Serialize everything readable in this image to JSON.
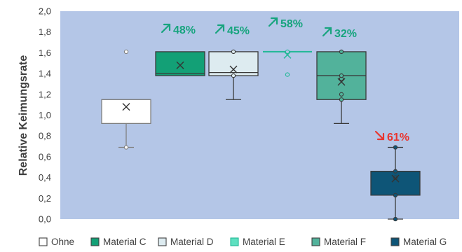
{
  "chart_data": {
    "type": "boxplot",
    "ylabel": "Relative Keimungsrate",
    "ylim": [
      0,
      2
    ],
    "ytick_step": 0.2,
    "yticks": [
      "0,0",
      "0,2",
      "0,4",
      "0,6",
      "0,8",
      "1,0",
      "1,2",
      "1,4",
      "1,6",
      "1,8",
      "2,0"
    ],
    "plot_background": "#b4c6e7",
    "grid": false,
    "legend_position": "bottom",
    "series": [
      {
        "name": "Ohne",
        "fill": "#ffffff",
        "edge": "#7f7f7f",
        "dot_fill": "#ffffff",
        "q1": 0.92,
        "median": 1.15,
        "q3": 1.15,
        "whisker_low": 0.69,
        "whisker_high": 1.15,
        "mean": 1.08,
        "points": [
          0.69,
          1.61
        ],
        "change": "",
        "change_dir": "",
        "change_color": ""
      },
      {
        "name": "Material C",
        "fill": "#13a076",
        "edge": "#3a3a3a",
        "dot_fill": "#13a076",
        "q1": 1.38,
        "median": 1.4,
        "q3": 1.61,
        "whisker_low": 1.38,
        "whisker_high": 1.61,
        "mean": 1.48,
        "points": [],
        "change": "48%",
        "change_dir": "up",
        "change_color": "#17a47e"
      },
      {
        "name": "Material D",
        "fill": "#ddebf0",
        "edge": "#3a3a3a",
        "dot_fill": "#ddebf0",
        "q1": 1.38,
        "median": 1.41,
        "q3": 1.61,
        "whisker_low": 1.15,
        "whisker_high": 1.61,
        "mean": 1.44,
        "points": [
          1.38,
          1.61
        ],
        "change": "45%",
        "change_dir": "up",
        "change_color": "#17a47e"
      },
      {
        "name": "Material E",
        "fill": "#5ee0c0",
        "edge": "#22b896",
        "dot_fill": "#b4c6e7",
        "q1": 1.61,
        "median": 1.61,
        "q3": 1.61,
        "whisker_low": 1.61,
        "whisker_high": 1.61,
        "mean": 1.58,
        "points": [
          1.39,
          1.61
        ],
        "change": "58%",
        "change_dir": "up",
        "change_color": "#17a47e"
      },
      {
        "name": "Material F",
        "fill": "#52b29b",
        "edge": "#3a3a3a",
        "dot_fill": "#52b29b",
        "q1": 1.15,
        "median": 1.38,
        "q3": 1.61,
        "whisker_low": 0.92,
        "whisker_high": 1.61,
        "mean": 1.32,
        "points": [
          1.15,
          1.2,
          1.35,
          1.38,
          1.61
        ],
        "change": "32%",
        "change_dir": "up",
        "change_color": "#17a47e"
      },
      {
        "name": "Material G",
        "fill": "#0e5577",
        "edge": "#3a3a3a",
        "dot_fill": "#0e5577",
        "q1": 0.23,
        "median": 0.46,
        "q3": 0.46,
        "whisker_low": 0.0,
        "whisker_high": 0.69,
        "mean": 0.39,
        "points": [
          0.0,
          0.23,
          0.4,
          0.46,
          0.69
        ],
        "change": "61%",
        "change_dir": "down",
        "change_color": "#e8352f"
      }
    ]
  }
}
